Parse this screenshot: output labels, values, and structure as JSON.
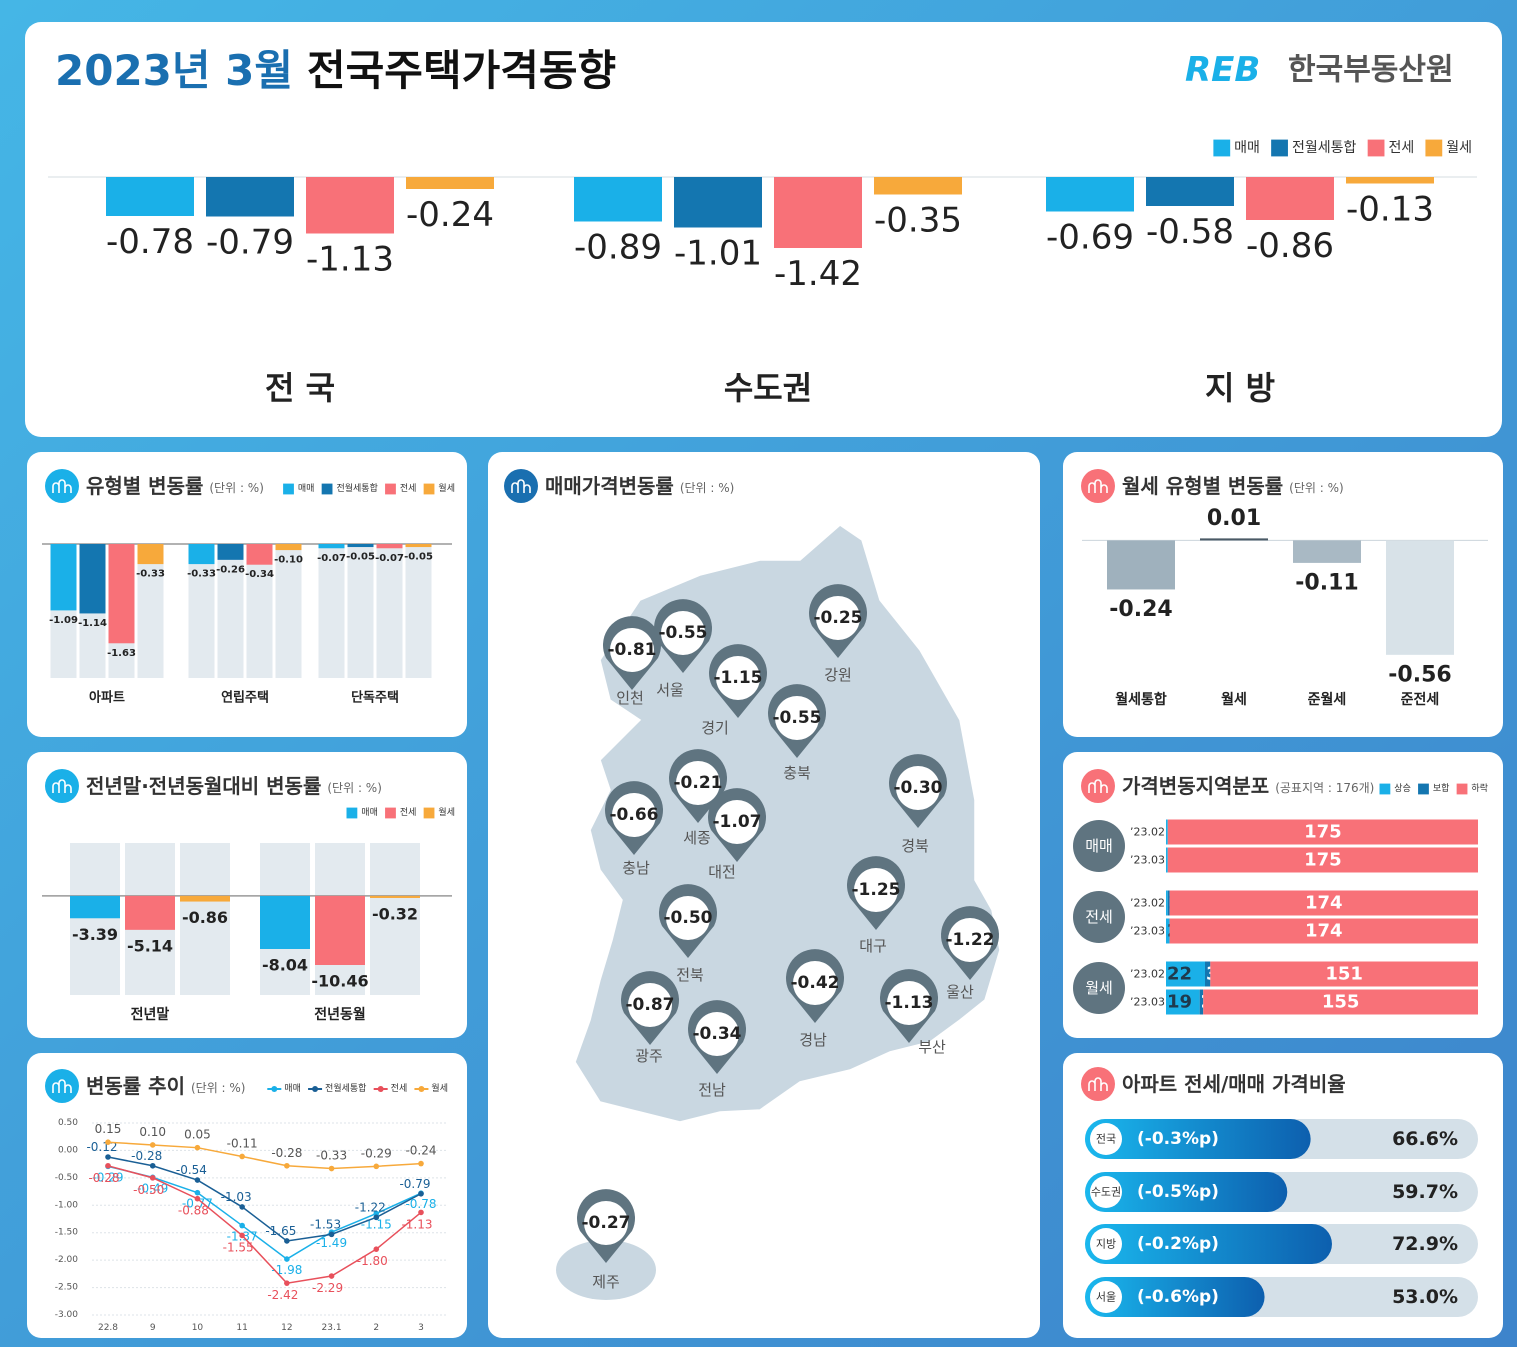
{
  "header": {
    "title_date": "2023년 3월",
    "title_main": "전국주택가격동향",
    "logo_mark": "REB",
    "logo_text": "한국부동산원"
  },
  "chart_data": [
    {
      "type": "bar",
      "categories": [
        "전 국",
        "수도권",
        "지 방"
      ],
      "ylim": [
        -4,
        0
      ],
      "legend": "top-right",
      "series": [
        {
          "name": "매매",
          "color": "#1ab0e8",
          "values": [
            -0.78,
            -0.89,
            -0.69
          ]
        },
        {
          "name": "전월세통합",
          "color": "#1476b0",
          "values": [
            -0.79,
            -1.01,
            -0.58
          ]
        },
        {
          "name": "전세",
          "color": "#f87178",
          "values": [
            -1.13,
            -1.42,
            -0.86
          ]
        },
        {
          "name": "월세",
          "color": "#f7a93b",
          "values": [
            -0.24,
            -0.35,
            -0.13
          ]
        }
      ]
    },
    {
      "type": "bar",
      "title": "유형별 변동률",
      "unit": "(단위 : %)",
      "categories": [
        "아파트",
        "연립주택",
        "단독주택"
      ],
      "ylim": [
        -2.2,
        0
      ],
      "legend": "top-right",
      "series": [
        {
          "name": "매매",
          "color": "#1ab0e8",
          "values": [
            -1.09,
            -0.33,
            -0.07
          ]
        },
        {
          "name": "전월세통합",
          "color": "#1476b0",
          "values": [
            -1.14,
            -0.26,
            -0.05
          ]
        },
        {
          "name": "전세",
          "color": "#f87178",
          "values": [
            -1.63,
            -0.34,
            -0.07
          ]
        },
        {
          "name": "월세",
          "color": "#f7a93b",
          "values": [
            -0.33,
            -0.1,
            -0.05
          ],
          "value_labels": [
            "-0.33",
            "-0.10",
            "-0.05"
          ]
        }
      ]
    },
    {
      "type": "bar",
      "title": "전년말·전년동월대비 변동률",
      "unit": "(단위 : %)",
      "categories": [
        "전년말",
        "전년동월"
      ],
      "ylim": [
        -15,
        8
      ],
      "legend": "top-right",
      "series": [
        {
          "name": "매매",
          "color": "#1ab0e8",
          "values": [
            -3.39,
            -8.04
          ]
        },
        {
          "name": "전세",
          "color": "#f87178",
          "values": [
            -5.14,
            -10.46
          ]
        },
        {
          "name": "월세",
          "color": "#f7a93b",
          "values": [
            -0.86,
            -0.32
          ]
        }
      ]
    },
    {
      "type": "line",
      "title": "변동률 추이",
      "unit": "(단위 : %)",
      "categories": [
        "22.8",
        "9",
        "10",
        "11",
        "12",
        "23.1",
        "2",
        "3"
      ],
      "ylim": [
        -3,
        0.5
      ],
      "grid": true,
      "legend": "top-right",
      "yticks": [
        {
          "value": 0.5,
          "label": "0.50"
        },
        {
          "value": 0,
          "label": "0.00"
        },
        {
          "value": -0.5,
          "label": "-0.50"
        },
        {
          "value": -1,
          "label": "-1.00"
        },
        {
          "value": -1.5,
          "label": "-1.50"
        },
        {
          "value": -2,
          "label": "-2.00"
        },
        {
          "value": -2.5,
          "label": "-2.50"
        },
        {
          "value": -3,
          "label": "-3.00"
        }
      ],
      "series": [
        {
          "name": "매매",
          "color": "#1ab0e8",
          "values": [
            -0.29,
            -0.49,
            -0.77,
            -1.37,
            -1.98,
            -1.49,
            -1.15,
            -0.78
          ]
        },
        {
          "name": "전월세통합",
          "color": "#1a5f95",
          "values": [
            -0.12,
            -0.28,
            -0.54,
            -1.03,
            -1.65,
            -1.53,
            -1.22,
            -0.79
          ]
        },
        {
          "name": "전세",
          "color": "#e8505b",
          "values": [
            -0.28,
            -0.5,
            -0.88,
            -1.55,
            -2.42,
            -2.29,
            -1.8,
            -1.13
          ],
          "value_labels": [
            "-0.28",
            "-0.50",
            "-0.88",
            "-1.55",
            "-2.42",
            "-2.29",
            "-1.80",
            "-1.13"
          ]
        },
        {
          "name": "월세",
          "color": "#f7a93b",
          "values": [
            0.15,
            0.1,
            0.05,
            -0.11,
            -0.28,
            -0.33,
            -0.29,
            -0.24
          ],
          "value_labels": [
            "0.15",
            "0.10",
            "0.05",
            "-0.11",
            "-0.28",
            "-0.33",
            "-0.29",
            "-0.24"
          ]
        }
      ]
    },
    {
      "type": "map",
      "title": "매매가격변동률",
      "unit": "(단위 : %)",
      "regions": [
        {
          "name": "인천",
          "value": -0.81
        },
        {
          "name": "서울",
          "value": -0.55
        },
        {
          "name": "경기",
          "value": -1.15
        },
        {
          "name": "강원",
          "value": -0.25
        },
        {
          "name": "충북",
          "value": -0.55
        },
        {
          "name": "세종",
          "value": -0.21
        },
        {
          "name": "대전",
          "value": -1.07
        },
        {
          "name": "충남",
          "value": -0.66
        },
        {
          "name": "경북",
          "value": -0.3,
          "value_label": "-0.30"
        },
        {
          "name": "대구",
          "value": -1.25
        },
        {
          "name": "울산",
          "value": -1.22
        },
        {
          "name": "전북",
          "value": -0.5,
          "value_label": "-0.50"
        },
        {
          "name": "경남",
          "value": -0.42
        },
        {
          "name": "부산",
          "value": -1.13
        },
        {
          "name": "광주",
          "value": -0.87
        },
        {
          "name": "전남",
          "value": -0.34
        },
        {
          "name": "제주",
          "value": -0.27
        }
      ]
    },
    {
      "type": "bar",
      "title": "월세 유형별 변동률",
      "unit": "(단위 : %)",
      "categories": [
        "월세통합",
        "월세",
        "준월세",
        "준전세"
      ],
      "values": [
        -0.24,
        0.01,
        -0.11,
        -0.56
      ],
      "colors": [
        "#9fb1bd",
        "#4a5a66",
        "#a9b9c4",
        "#d8e2e8"
      ],
      "ylim": [
        -0.6,
        0.1
      ]
    },
    {
      "type": "stacked-bar",
      "title": "가격변동지역분포",
      "unit": "(공표지역 : 176개)",
      "legend": "top-right",
      "groups": [
        "매매",
        "전세",
        "월세"
      ],
      "categories": [
        "’23.02",
        "’23.03",
        "’23.02",
        "’23.03",
        "’23.02",
        "’23.03"
      ],
      "xlim": [
        0,
        176
      ],
      "series": [
        {
          "name": "상승",
          "color": "#1ab0e8",
          "values": [
            1,
            1,
            1,
            2,
            22,
            19
          ]
        },
        {
          "name": "보합",
          "color": "#1476b0",
          "values": [
            0,
            0,
            1,
            0,
            3,
            2
          ]
        },
        {
          "name": "하락",
          "color": "#f87178",
          "values": [
            175,
            175,
            174,
            174,
            151,
            155
          ]
        }
      ]
    },
    {
      "type": "progress",
      "title": "아파트 전세/매매 가격비율",
      "categories": [
        "전국",
        "수도권",
        "지방",
        "서울"
      ],
      "values": [
        66.6,
        59.7,
        72.9,
        53.0
      ],
      "value_labels": [
        "66.6%",
        "59.7%",
        "72.9%",
        "53.0%"
      ],
      "changes": [
        -0.3,
        -0.5,
        -0.2,
        -0.6
      ],
      "change_labels": [
        "(-0.3%p)",
        "(-0.5%p)",
        "(-0.2%p)",
        "(-0.6%p)"
      ],
      "xlim": [
        0,
        116
      ]
    }
  ]
}
